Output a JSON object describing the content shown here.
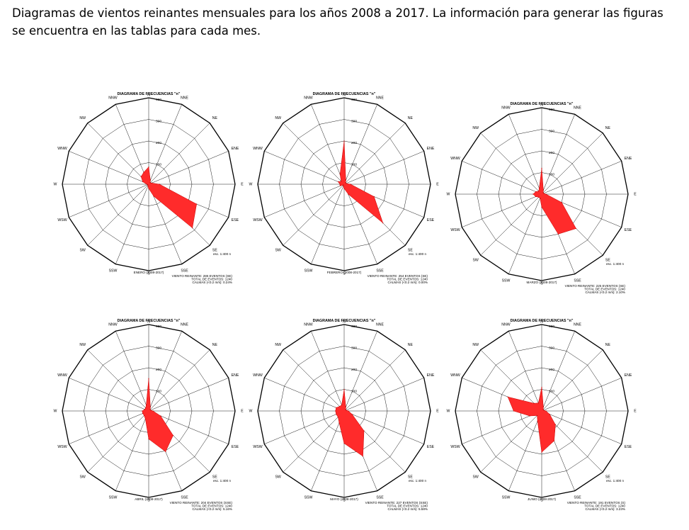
{
  "caption": "Diagramas de vientos reinantes mensuales para los años 2008 a 2017. La información para generar las figuras se encuentra en las tablas para cada mes.",
  "directions": [
    "N",
    "NNE",
    "NE",
    "ENE",
    "E",
    "ESE",
    "SE",
    "SSE",
    "S",
    "SSW",
    "SW",
    "WSW",
    "W",
    "WNW",
    "NW",
    "NNW"
  ],
  "chart_data": [
    {
      "type": "polar-area",
      "title": "DIAGRAMA DE FRECUENCIAS \"n\"",
      "month_label": "ENERO (2008-2017)",
      "ring_ticks": [
        "100",
        "200",
        "300",
        "400"
      ],
      "rmax": 400,
      "scale": "esc. 1:400 n",
      "info": [
        "VIENTO REINANTE: 286 EVENTOS (SE)",
        "TOTAL DE EVENTOS: 1240",
        "CALMAS (<0.2 m/s): 0.24%"
      ],
      "categories": [
        "N",
        "NNE",
        "NE",
        "ENE",
        "E",
        "ESE",
        "SE",
        "SSE",
        "S",
        "SSW",
        "SW",
        "WSW",
        "W",
        "WNW",
        "NW",
        "NNW"
      ],
      "values": [
        80,
        20,
        10,
        15,
        50,
        240,
        286,
        60,
        20,
        10,
        5,
        5,
        10,
        30,
        50,
        60
      ]
    },
    {
      "type": "polar-area",
      "title": "DIAGRAMA DE FRECUENCIAS \"n\"",
      "month_label": "FEBRERO (2008-2017)",
      "ring_ticks": [
        "100",
        "200",
        "300",
        "400"
      ],
      "rmax": 400,
      "scale": "esc. 1:400 n",
      "info": [
        "VIENTO REINANTE: 254 EVENTOS (SE)",
        "TOTAL DE EVENTOS: 1240",
        "CALMAS (<0.2 m/s): 0.00%"
      ],
      "categories": [
        "N",
        "NNE",
        "NE",
        "ENE",
        "E",
        "ESE",
        "SE",
        "SSE",
        "S",
        "SSW",
        "SW",
        "WSW",
        "W",
        "WNW",
        "NW",
        "NNW"
      ],
      "values": [
        200,
        20,
        10,
        10,
        30,
        150,
        254,
        50,
        20,
        10,
        5,
        20,
        20,
        30,
        20,
        50
      ]
    },
    {
      "type": "polar-area",
      "title": "DIAGRAMA DE FRECUENCIAS \"n\"",
      "month_label": "MARZO (2008-2017)",
      "ring_ticks": [
        "100",
        "200",
        "300",
        "400"
      ],
      "rmax": 400,
      "scale": "esc. 1:400 n",
      "info": [
        "VIENTO REINANTE: 225 EVENTOS (SE)",
        "TOTAL DE EVENTOS: 1240",
        "CALMAS (<0.2 m/s): 2.10%"
      ],
      "categories": [
        "N",
        "NNE",
        "NE",
        "ENE",
        "E",
        "ESE",
        "SE",
        "SSE",
        "S",
        "SSW",
        "SW",
        "WSW",
        "W",
        "WNW",
        "NW",
        "NNW"
      ],
      "values": [
        120,
        20,
        10,
        10,
        20,
        100,
        225,
        200,
        60,
        20,
        20,
        30,
        40,
        30,
        20,
        30
      ]
    },
    {
      "type": "polar-area",
      "title": "DIAGRAMA DE FRECUENCIAS \"n\"",
      "month_label": "ABRIL (2008-2017)",
      "ring_ticks": [
        "100",
        "200",
        "300",
        "400"
      ],
      "rmax": 400,
      "scale": "esc. 1:400 n",
      "info": [
        "VIENTO REINANTE: 204 EVENTOS (SSE)",
        "TOTAL DE EVENTOS: 1240",
        "CALMAS (<0.2 m/s): 5.16%"
      ],
      "categories": [
        "N",
        "NNE",
        "NE",
        "ENE",
        "E",
        "ESE",
        "SE",
        "SSE",
        "S",
        "SSW",
        "SW",
        "WSW",
        "W",
        "WNW",
        "NW",
        "NNW"
      ],
      "values": [
        150,
        20,
        10,
        10,
        20,
        60,
        160,
        204,
        130,
        40,
        30,
        30,
        30,
        20,
        20,
        30
      ]
    },
    {
      "type": "polar-area",
      "title": "DIAGRAMA DE FRECUENCIAS \"n\"",
      "month_label": "MAYO (2008-2017)",
      "ring_ticks": [
        "100",
        "200",
        "300",
        "400"
      ],
      "rmax": 400,
      "scale": "esc. 1:400 n",
      "info": [
        "VIENTO REINANTE: 227 EVENTOS (SSE)",
        "TOTAL DE EVENTOS: 1240",
        "CALMAS (<0.2 m/s): 5.58%"
      ],
      "categories": [
        "N",
        "NNE",
        "NE",
        "ENE",
        "E",
        "ESE",
        "SE",
        "SSE",
        "S",
        "SSW",
        "SW",
        "WSW",
        "W",
        "WNW",
        "NW",
        "NNW"
      ],
      "values": [
        100,
        20,
        10,
        10,
        20,
        40,
        130,
        227,
        150,
        60,
        40,
        40,
        40,
        40,
        30,
        30
      ]
    },
    {
      "type": "polar-area",
      "title": "DIAGRAMA DE FRECUENCIAS \"n\"",
      "month_label": "JUNIO (2008-2017)",
      "ring_ticks": [
        "100",
        "200",
        "300",
        "400"
      ],
      "rmax": 400,
      "scale": "esc. 1:400 n",
      "info": [
        "VIENTO REINANTE: 191 EVENTOS (S)",
        "TOTAL DE EVENTOS: 1240",
        "CALMAS (<0.2 m/s): 3.23%"
      ],
      "categories": [
        "N",
        "NNE",
        "NE",
        "ENE",
        "E",
        "ESE",
        "SE",
        "SSE",
        "S",
        "SSW",
        "SW",
        "WSW",
        "W",
        "WNW",
        "NW",
        "NNW"
      ],
      "values": [
        110,
        20,
        10,
        10,
        20,
        40,
        90,
        150,
        191,
        50,
        30,
        60,
        130,
        170,
        50,
        40
      ]
    }
  ]
}
